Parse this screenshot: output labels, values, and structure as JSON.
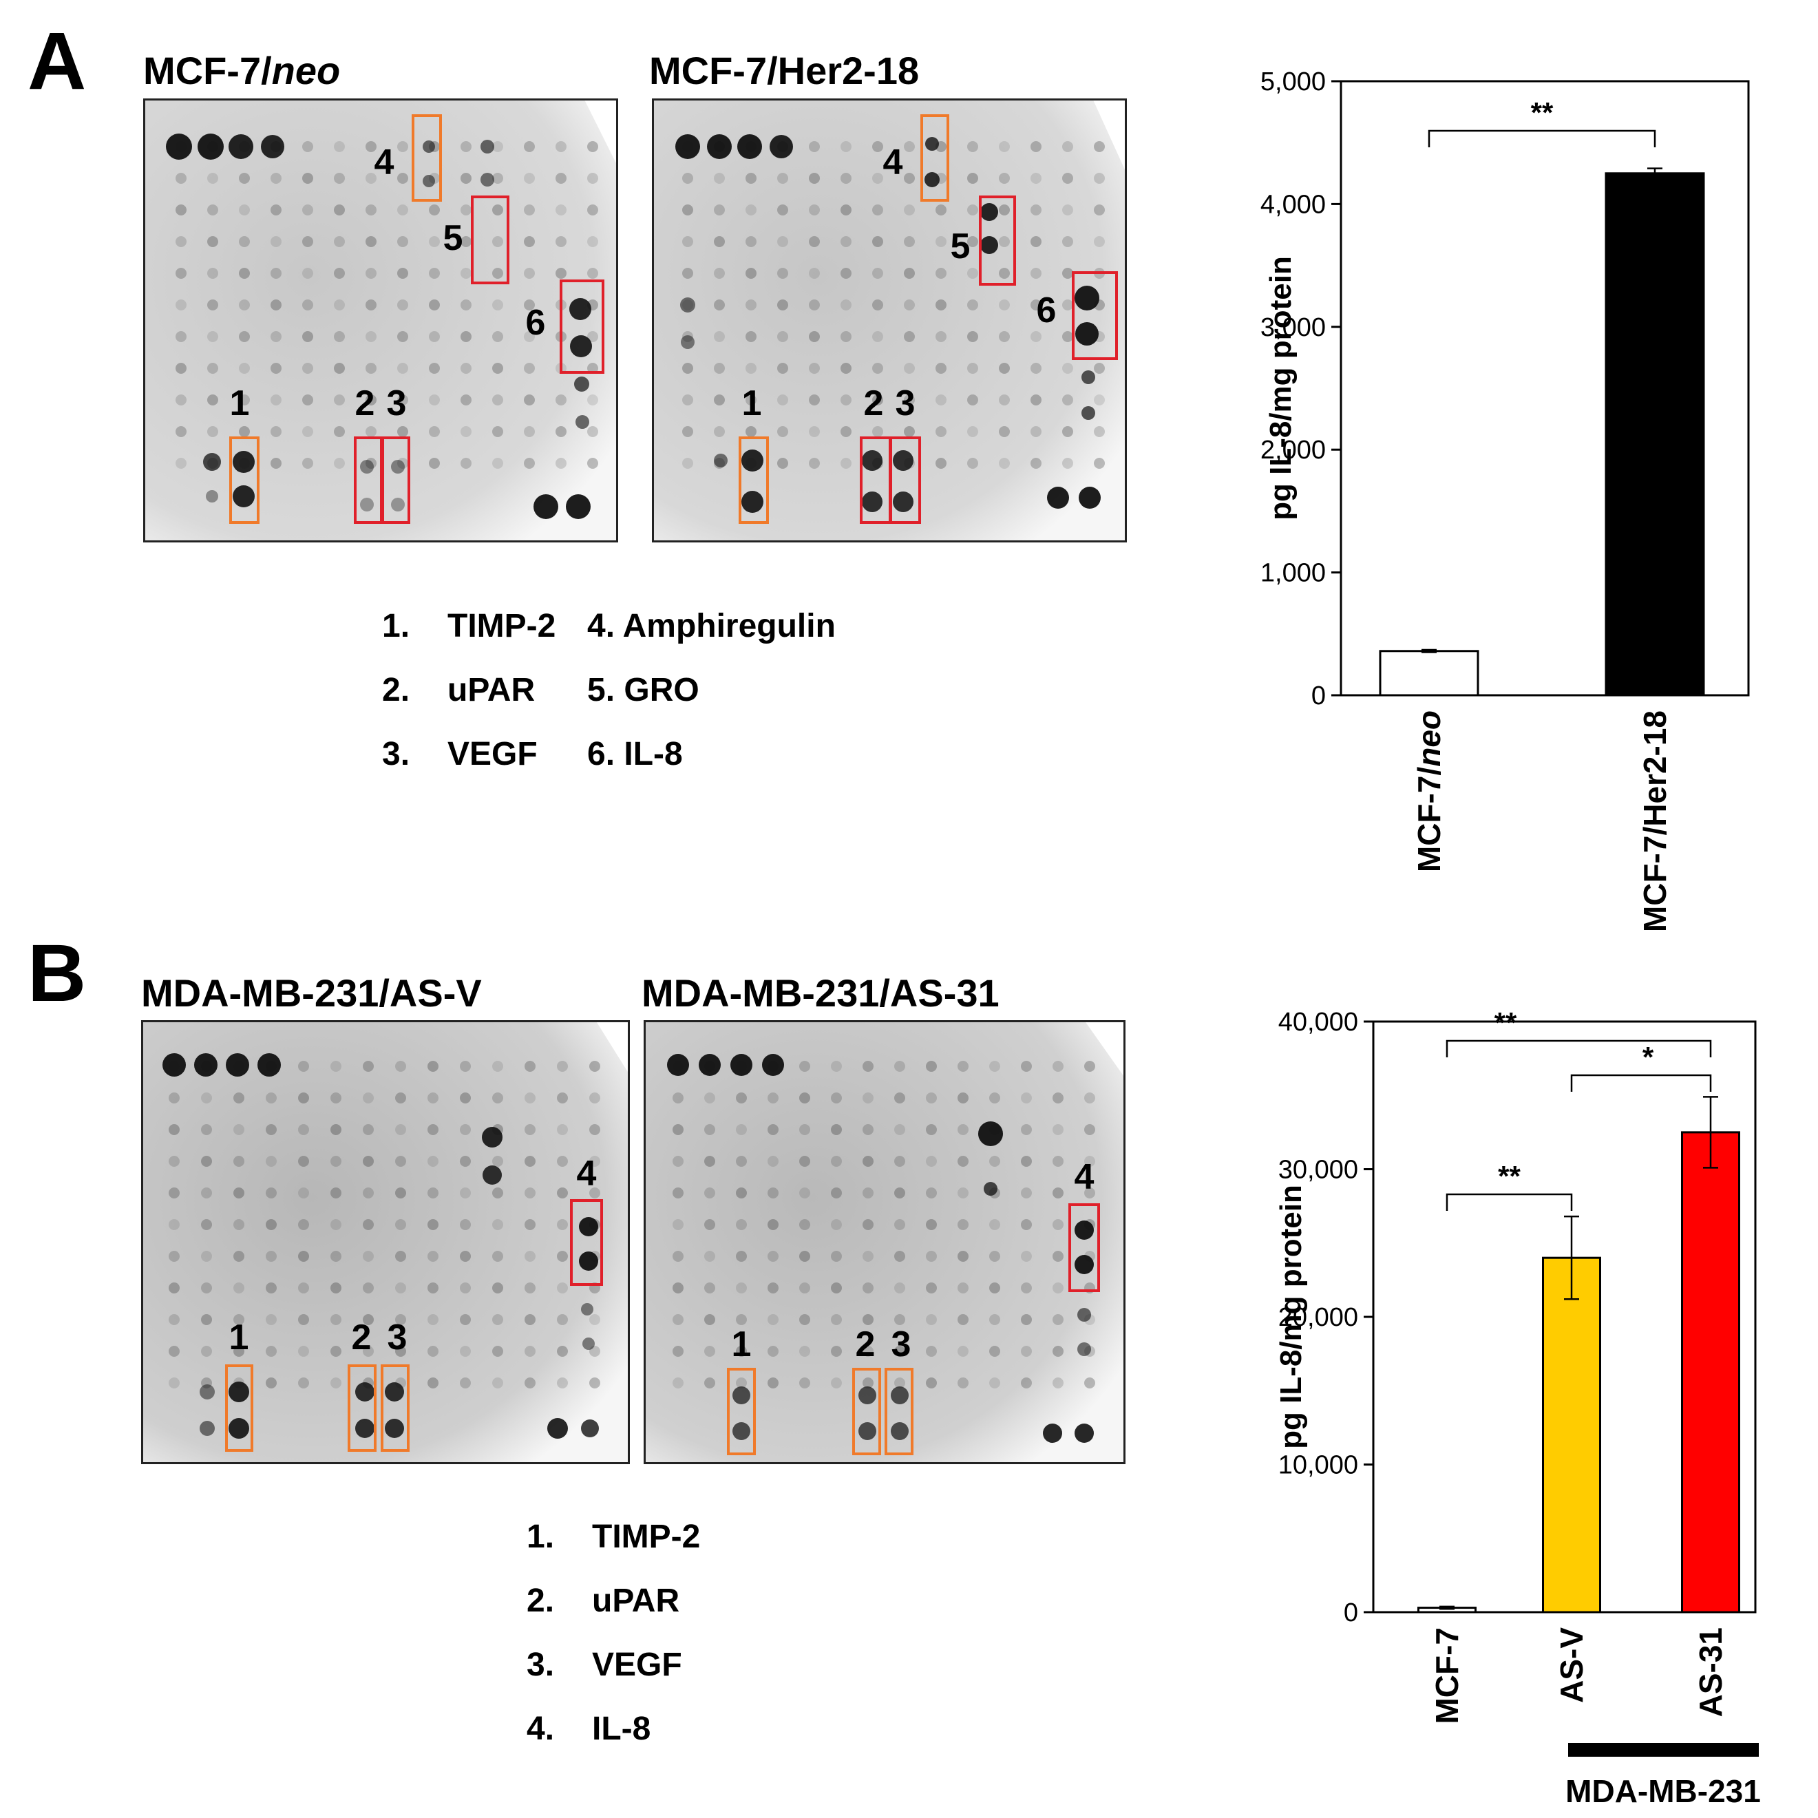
{
  "panels": {
    "A": {
      "letter": "A",
      "blot_left": {
        "title_main": "MCF-7/",
        "title_ital": "neo"
      },
      "blot_right": {
        "title_main": "MCF-7/Her2-18"
      },
      "marker_numbers": [
        "1",
        "2",
        "3",
        "4",
        "5",
        "6"
      ],
      "legend": [
        {
          "num": "1.",
          "name": "TIMP-2"
        },
        {
          "num": "2.",
          "name": "uPAR"
        },
        {
          "num": "3.",
          "name": "VEGF"
        },
        {
          "num": "4.",
          "name": "Amphiregulin"
        },
        {
          "num": "5.",
          "name": "GRO"
        },
        {
          "num": "6.",
          "name": "IL-8"
        }
      ]
    },
    "B": {
      "letter": "B",
      "blot_left": {
        "title_main": "MDA-MB-231/AS-V"
      },
      "blot_right": {
        "title_main": "MDA-MB-231/AS-31"
      },
      "marker_numbers": [
        "1",
        "2",
        "3",
        "4"
      ],
      "legend": [
        {
          "num": "1.",
          "name": "TIMP-2"
        },
        {
          "num": "2.",
          "name": "uPAR"
        },
        {
          "num": "3.",
          "name": "VEGF"
        },
        {
          "num": "4.",
          "name": "IL-8"
        }
      ]
    }
  },
  "colors": {
    "orange": "#f07a2a",
    "red": "#e0202a",
    "yellow": "#ffcc00",
    "bar_red": "#ff0000",
    "black": "#000000",
    "white": "#ffffff"
  },
  "chart_data": [
    {
      "type": "bar",
      "title": "",
      "ylabel": "pg IL-8/mg protein",
      "ylim": [
        0,
        5000
      ],
      "yticks": [
        0,
        1000,
        2000,
        3000,
        4000,
        5000
      ],
      "ytick_labels": [
        "0",
        "1,000",
        "2,000",
        "3,000",
        "4,000",
        "5,000"
      ],
      "categories": [
        "MCF-7/neo",
        "MCF-7/Her2-18"
      ],
      "category_parts": [
        [
          "MCF-7/",
          "neo"
        ],
        [
          "MCF-7/Her2-18",
          ""
        ]
      ],
      "values": [
        360,
        4250
      ],
      "errors": [
        10,
        40
      ],
      "bar_colors": [
        "#ffffff",
        "#000000"
      ],
      "significance": [
        {
          "from": 0,
          "to": 1,
          "label": "**"
        }
      ]
    },
    {
      "type": "bar",
      "title": "",
      "ylabel": "pg IL-8/mg protein",
      "ylim": [
        0,
        40000
      ],
      "yticks": [
        0,
        10000,
        20000,
        30000,
        40000
      ],
      "ytick_labels": [
        "0",
        "10,000",
        "20,000",
        "30,000",
        "40,000"
      ],
      "categories": [
        "MCF-7",
        "AS-V",
        "AS-31"
      ],
      "values": [
        300,
        24000,
        32500
      ],
      "errors": [
        80,
        2800,
        2400
      ],
      "bar_colors": [
        "#ffffff",
        "#ffcc00",
        "#ff0000"
      ],
      "significance": [
        {
          "from": 0,
          "to": 2,
          "label": "**"
        },
        {
          "from": 1,
          "to": 2,
          "label": "*"
        },
        {
          "from": 0,
          "to": 1,
          "label": "**"
        }
      ],
      "group_label": "MDA-MB-231"
    }
  ]
}
